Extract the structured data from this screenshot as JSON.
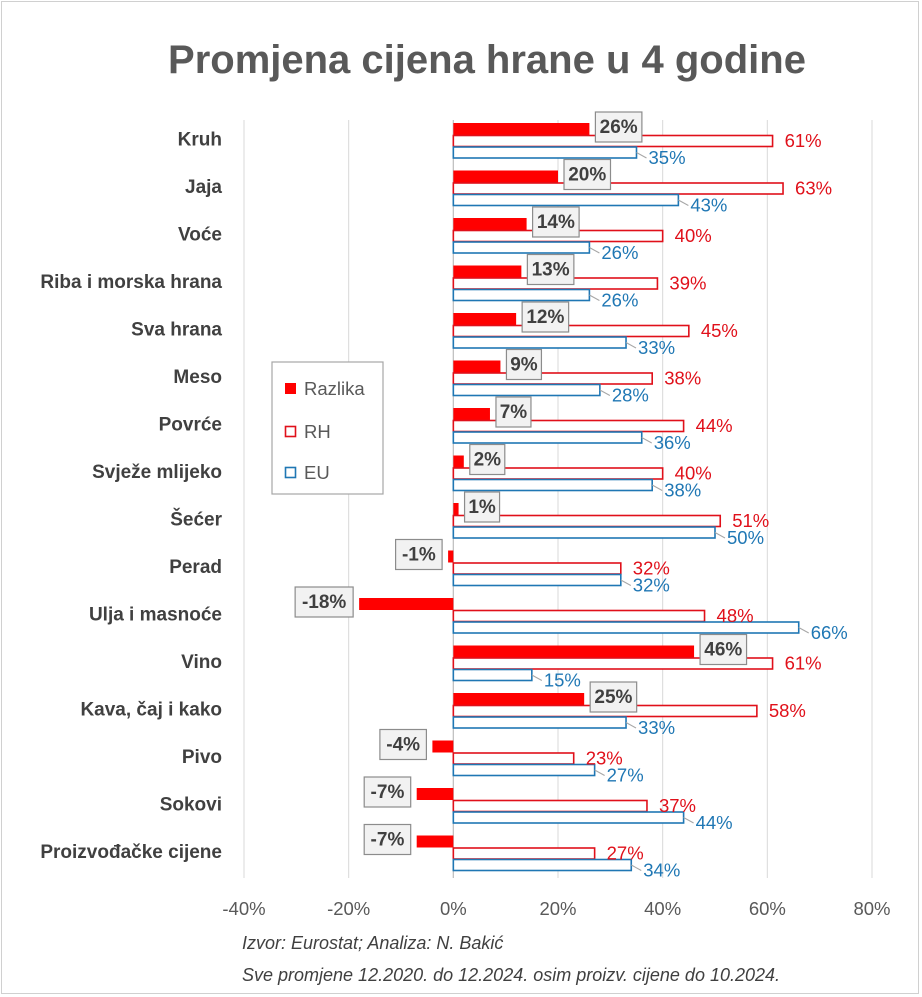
{
  "chart_data": {
    "type": "bar",
    "orientation": "horizontal",
    "title": "Promjena cijena hrane u 4 godine",
    "categories": [
      "Kruh",
      "Jaja",
      "Voće",
      "Riba i morska hrana",
      "Sva hrana",
      "Meso",
      "Povrće",
      "Svježe mlijeko",
      "Šećer",
      "Perad",
      "Ulja i masnoće",
      "Vino",
      "Kava, čaj i kako",
      "Pivo",
      "Sokovi",
      "Proizvođačke cijene"
    ],
    "series": [
      {
        "name": "Razlika",
        "color": "#ff0000",
        "values": [
          26,
          20,
          14,
          13,
          12,
          9,
          7,
          2,
          1,
          -1,
          -18,
          46,
          25,
          -4,
          -7,
          -7
        ]
      },
      {
        "name": "RH",
        "color": "#e0101a",
        "values": [
          61,
          63,
          40,
          39,
          45,
          38,
          44,
          40,
          51,
          32,
          48,
          61,
          58,
          23,
          37,
          27
        ]
      },
      {
        "name": "EU",
        "color": "#1f77b4",
        "values": [
          35,
          43,
          26,
          26,
          33,
          28,
          36,
          38,
          50,
          32,
          66,
          15,
          33,
          27,
          44,
          34
        ]
      }
    ],
    "xlim": [
      -40,
      80
    ],
    "x_ticks": [
      "-40%",
      "-20%",
      "0%",
      "20%",
      "40%",
      "60%",
      "80%"
    ],
    "value_suffix": "%",
    "grid": "vertical",
    "legend": "left-middle"
  },
  "notes": {
    "source": "Izvor: Eurostat; Analiza: N. Bakić",
    "period": "Sve promjene 12.2020. do 12.2024. osim proizv. cijene do 10.2024."
  }
}
